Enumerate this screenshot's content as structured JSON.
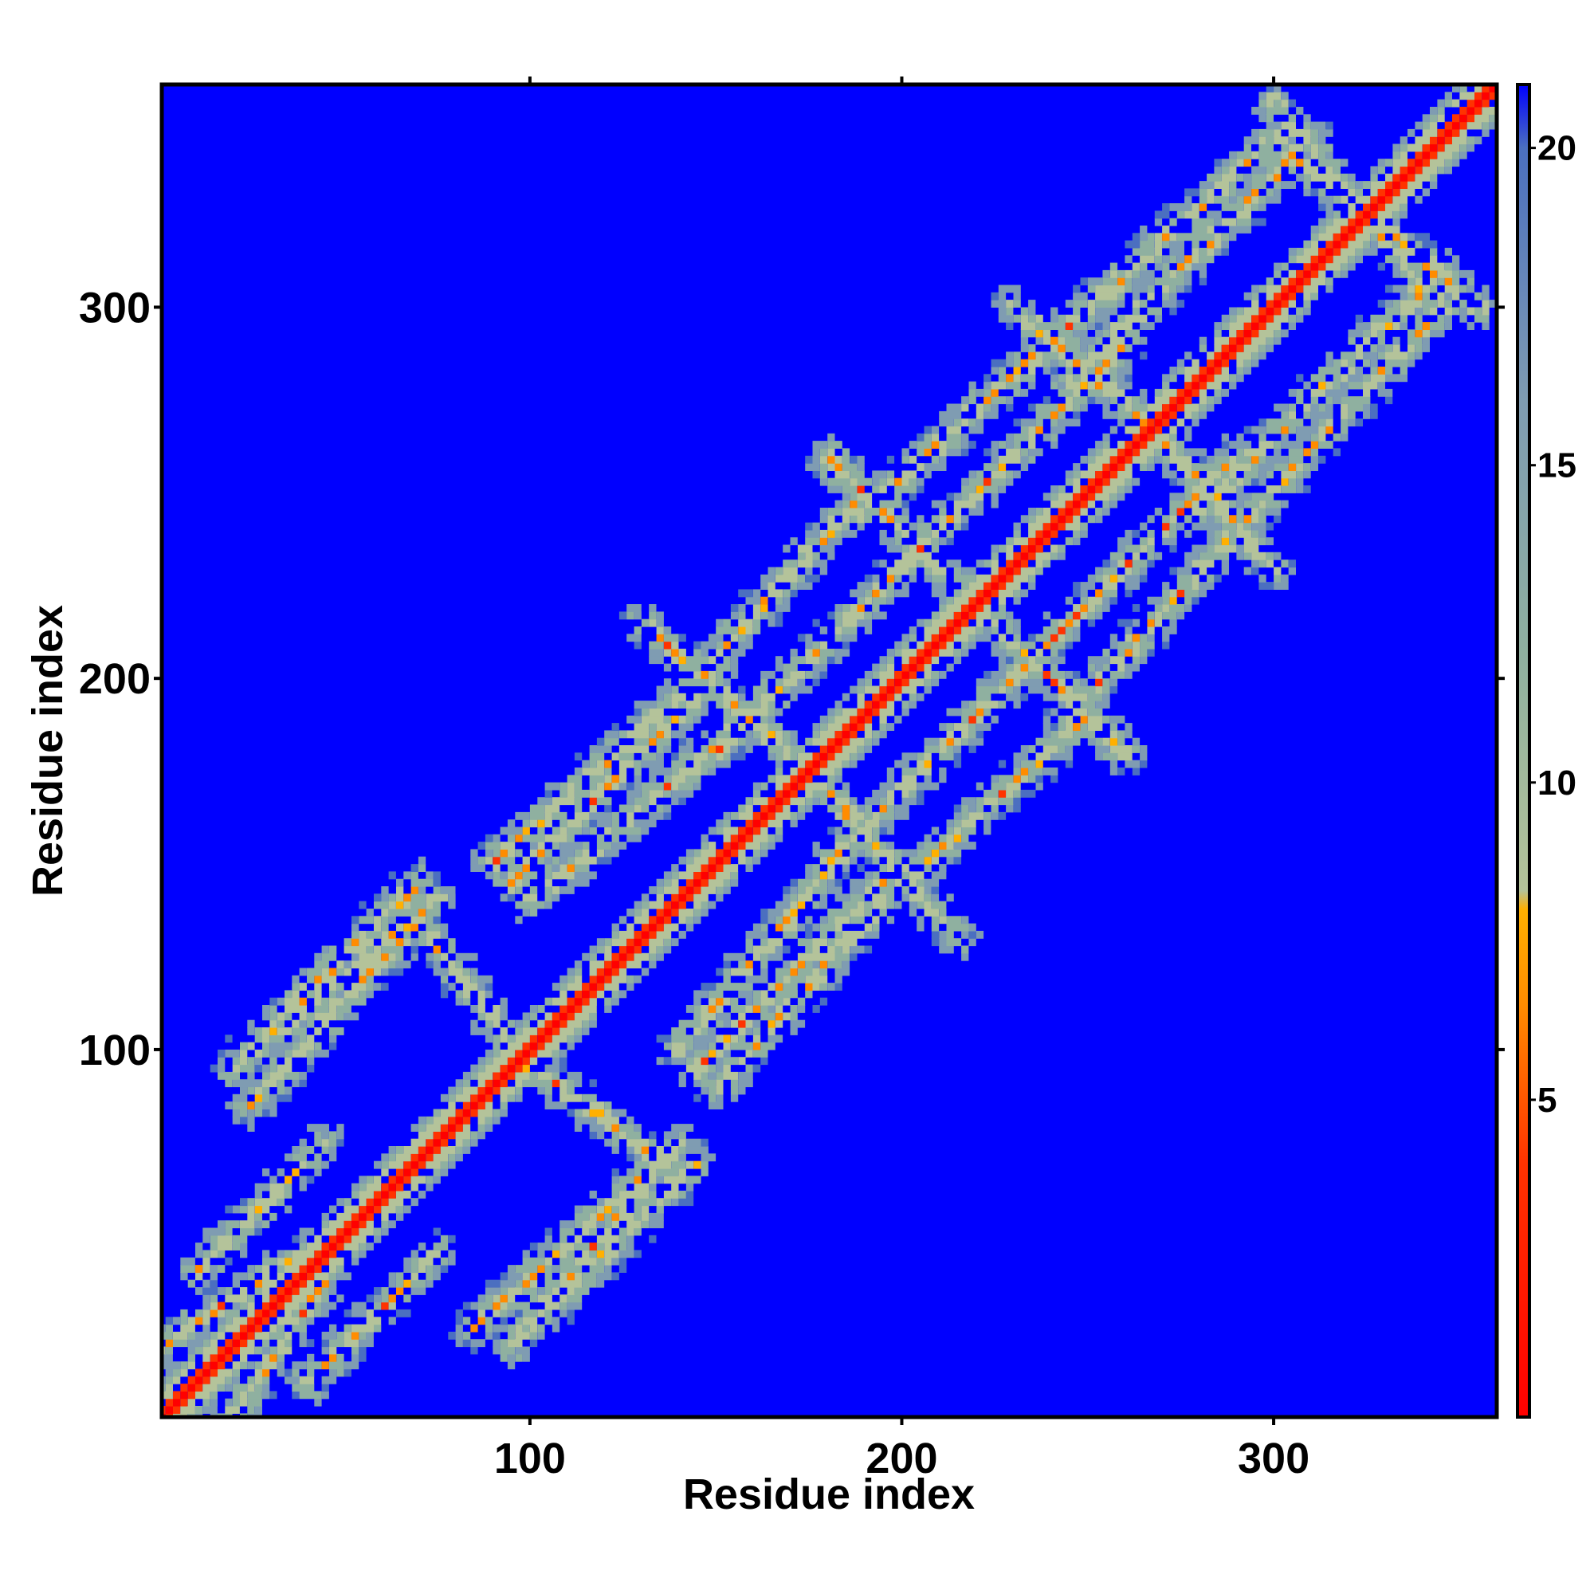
{
  "chart_data": {
    "type": "heatmap",
    "title": "",
    "xlabel": "Residue index",
    "ylabel": "Residue index",
    "n_residues": 360,
    "xlim": [
      1,
      360
    ],
    "ylim": [
      1,
      360
    ],
    "xticks": [
      100,
      200,
      300
    ],
    "xtick_labels": [
      "100",
      "200",
      "300"
    ],
    "yticks": [
      100,
      200,
      300
    ],
    "ytick_labels": [
      "100",
      "200",
      "300"
    ],
    "colorbar": {
      "range": [
        0,
        21
      ],
      "ticks": [
        5,
        10,
        15,
        20
      ],
      "tick_labels": [
        "5",
        "10",
        "15",
        "20"
      ],
      "colors": [
        {
          "value": 0,
          "color": "#ff0000"
        },
        {
          "value": 4,
          "color": "#ff3300"
        },
        {
          "value": 6.5,
          "color": "#ff8c00"
        },
        {
          "value": 8,
          "color": "#ffb000"
        },
        {
          "value": 8.3,
          "color": "#b4c39a"
        },
        {
          "value": 12,
          "color": "#8fb0a0"
        },
        {
          "value": 16,
          "color": "#7f9cb2"
        },
        {
          "value": 20,
          "color": "#4b6fc0"
        },
        {
          "value": 21,
          "color": "#0000ff"
        }
      ]
    },
    "background_color": "#0000ff",
    "description_values": {
      "diagonal": "distance near 0 along i=j",
      "off_diagonal_cutoff": 21
    },
    "contact_features": [
      {
        "type": "band",
        "offset": 0,
        "halfwidth": 9
      },
      {
        "type": "contact_line",
        "p1": [
          1,
          20
        ],
        "p2": [
          38,
          45
        ],
        "halfwidth": 5
      },
      {
        "type": "contact_line",
        "p1": [
          40,
          10
        ],
        "p2": [
          75,
          45
        ],
        "halfwidth": 5
      },
      {
        "type": "contact_line",
        "p1": [
          25,
          85
        ],
        "p2": [
          70,
          135
        ],
        "halfwidth": 5
      },
      {
        "type": "contact_line",
        "p1": [
          70,
          135
        ],
        "p2": [
          100,
          95
        ],
        "halfwidth": 5
      },
      {
        "type": "contact_line",
        "p1": [
          95,
          20
        ],
        "p2": [
          140,
          75
        ],
        "halfwidth": 5
      },
      {
        "type": "contact_line",
        "p1": [
          100,
          25
        ],
        "p2": [
          145,
          70
        ],
        "halfwidth": 5
      },
      {
        "type": "contact_line",
        "p1": [
          140,
          100
        ],
        "p2": [
          190,
          160
        ],
        "halfwidth": 5
      },
      {
        "type": "contact_line",
        "p1": [
          145,
          95
        ],
        "p2": [
          200,
          150
        ],
        "halfwidth": 5
      },
      {
        "type": "contact_line",
        "p1": [
          90,
          150
        ],
        "p2": [
          140,
          195
        ],
        "halfwidth": 5
      },
      {
        "type": "contact_line",
        "p1": [
          140,
          195
        ],
        "p2": [
          190,
          250
        ],
        "halfwidth": 5
      },
      {
        "type": "contact_line",
        "p1": [
          180,
          150
        ],
        "p2": [
          240,
          210
        ],
        "halfwidth": 5
      },
      {
        "type": "contact_line",
        "p1": [
          190,
          245
        ],
        "p2": [
          245,
          295
        ],
        "halfwidth": 5
      },
      {
        "type": "contact_line",
        "p1": [
          230,
          200
        ],
        "p2": [
          290,
          260
        ],
        "halfwidth": 5
      },
      {
        "type": "contact_line",
        "p1": [
          240,
          290
        ],
        "p2": [
          300,
          345
        ],
        "halfwidth": 5
      },
      {
        "type": "contact_line",
        "p1": [
          280,
          245
        ],
        "p2": [
          345,
          310
        ],
        "halfwidth": 5
      },
      {
        "type": "contact_line",
        "p1": [
          300,
          345
        ],
        "p2": [
          355,
          300
        ],
        "halfwidth": 5
      },
      {
        "type": "contact_line",
        "p1": [
          180,
          260
        ],
        "p2": [
          215,
          225
        ],
        "halfwidth": 5
      },
      {
        "type": "contact_line",
        "p1": [
          230,
          300
        ],
        "p2": [
          270,
          265
        ],
        "halfwidth": 5
      },
      {
        "type": "contact_line",
        "p1": [
          130,
          215
        ],
        "p2": [
          170,
          180
        ],
        "halfwidth": 5
      }
    ]
  }
}
